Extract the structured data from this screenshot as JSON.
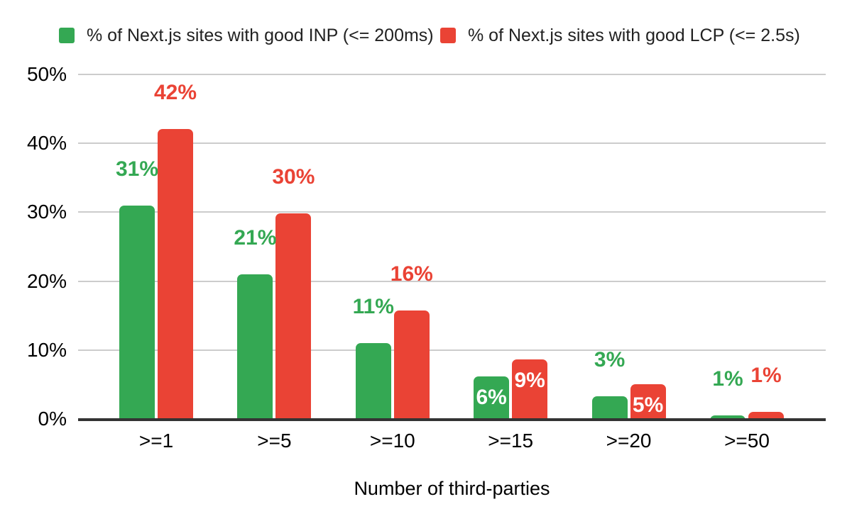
{
  "chart_data": {
    "type": "bar",
    "title": "",
    "categories": [
      ">=1",
      ">=5",
      ">=10",
      ">=15",
      ">=20",
      ">=50"
    ],
    "series": [
      {
        "name": "% of Next.js sites with good INP (<= 200ms)",
        "key": "inp",
        "color": "#34a853",
        "values": [
          31,
          21,
          11,
          6.2,
          3.3,
          0.5
        ],
        "data_labels": [
          "31%",
          "21%",
          "11%",
          "6%",
          "3%",
          "1%"
        ],
        "label_placement": [
          "above",
          "above",
          "above",
          "inside",
          "above",
          "above"
        ]
      },
      {
        "name": "% of Next.js sites with good LCP (<= 2.5s)",
        "key": "lcp",
        "color": "#ea4335",
        "values": [
          42.1,
          29.8,
          15.7,
          8.6,
          5,
          1
        ],
        "data_labels": [
          "42%",
          "30%",
          "16%",
          "9%",
          "5%",
          "1%"
        ],
        "label_placement": [
          "above",
          "above",
          "above",
          "inside",
          "inside",
          "above"
        ]
      }
    ],
    "xlabel": "Number of third-parties",
    "ylabel": "",
    "ylim": [
      0,
      50
    ],
    "yticks": [
      0,
      10,
      20,
      30,
      40,
      50
    ],
    "ytick_labels": [
      "0%",
      "10%",
      "20%",
      "30%",
      "40%",
      "50%"
    ],
    "grid": true,
    "legend_position": "top",
    "inside_label_color": "#ffffff",
    "axis_line_color": "#333333",
    "gridline_color": "#cccccc",
    "background_color": "#ffffff"
  }
}
